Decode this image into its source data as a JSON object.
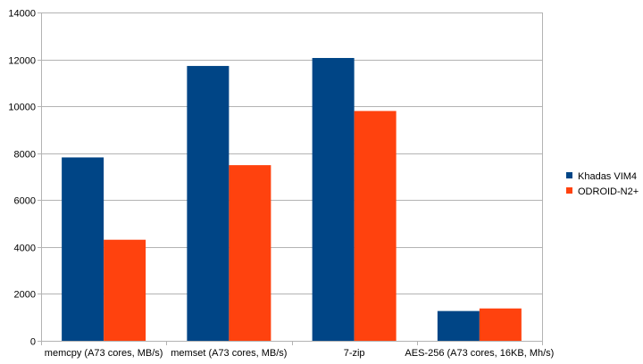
{
  "chart_data": {
    "type": "bar",
    "categories": [
      "memcpy (A73 cores, MB/s)",
      "memset (A73 cores, MB/s)",
      "7-zip",
      "AES-256 (A73 cores, 16KB, Mh/s)"
    ],
    "series": [
      {
        "name": "Khadas VIM4",
        "color": "#004586",
        "values": [
          7820,
          11720,
          12060,
          1270
        ]
      },
      {
        "name": "ODROID-N2+",
        "color": "#ff420e",
        "values": [
          4310,
          7490,
          9800,
          1380
        ]
      }
    ],
    "ylim": [
      0,
      14000
    ],
    "yticks": [
      0,
      2000,
      4000,
      6000,
      8000,
      10000,
      12000,
      14000
    ],
    "grid": true,
    "legend": "right"
  }
}
